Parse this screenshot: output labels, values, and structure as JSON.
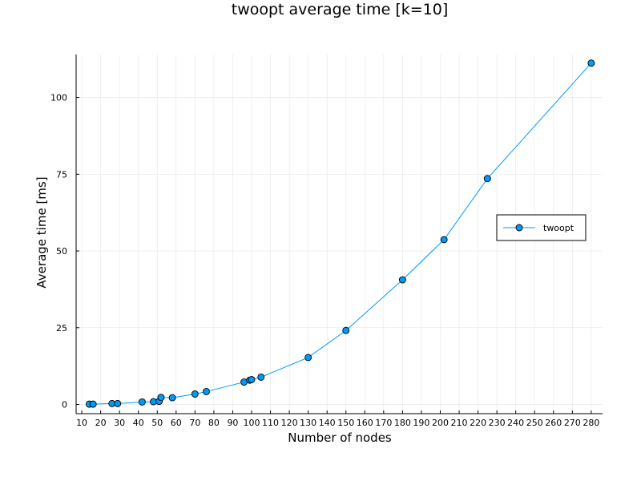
{
  "chart_data": {
    "type": "line",
    "title": "twoopt average time [k=10]",
    "xlabel": "Number of nodes",
    "ylabel": "Average time [ms]",
    "xlim": [
      7,
      286
    ],
    "ylim": [
      -3,
      114
    ],
    "xticks": [
      10,
      20,
      30,
      40,
      50,
      60,
      70,
      80,
      90,
      100,
      110,
      120,
      130,
      140,
      150,
      160,
      170,
      180,
      190,
      200,
      210,
      220,
      230,
      240,
      250,
      260,
      270,
      280
    ],
    "yticks": [
      0,
      25,
      50,
      75,
      100
    ],
    "grid": true,
    "legend_position": "right",
    "color": "#009af9",
    "series": [
      {
        "name": "twoopt",
        "x": [
          14,
          16,
          26,
          29,
          42,
          48,
          51,
          52,
          58,
          70,
          76,
          96,
          99,
          100,
          105,
          130,
          150,
          180,
          202,
          225,
          280
        ],
        "y": [
          0.1,
          0.1,
          0.3,
          0.3,
          0.8,
          0.9,
          1.0,
          2.3,
          2.2,
          3.4,
          4.2,
          7.3,
          7.9,
          8.1,
          8.9,
          15.3,
          24.1,
          40.6,
          53.7,
          73.6,
          111.2
        ]
      }
    ]
  }
}
